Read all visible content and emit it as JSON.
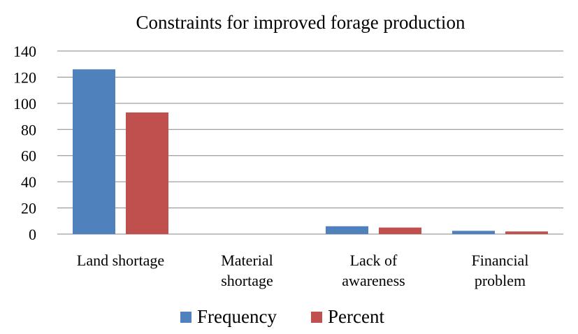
{
  "chart_data": {
    "type": "bar",
    "title": "Constraints for improved forage production",
    "categories": [
      [
        "Land shortage"
      ],
      [
        "Material",
        "shortage"
      ],
      [
        "Lack of",
        "awareness"
      ],
      [
        "Financial",
        "problem"
      ]
    ],
    "series": [
      {
        "name": "Frequency",
        "color": "#4F81BD",
        "values": [
          126,
          0,
          6,
          2.5
        ]
      },
      {
        "name": "Percent",
        "color": "#C0504D",
        "values": [
          93,
          0,
          5,
          2
        ]
      }
    ],
    "ylim": [
      0,
      140
    ],
    "yticks": [
      0,
      20,
      40,
      60,
      80,
      100,
      120,
      140
    ],
    "grid": true,
    "legend_position": "bottom"
  }
}
